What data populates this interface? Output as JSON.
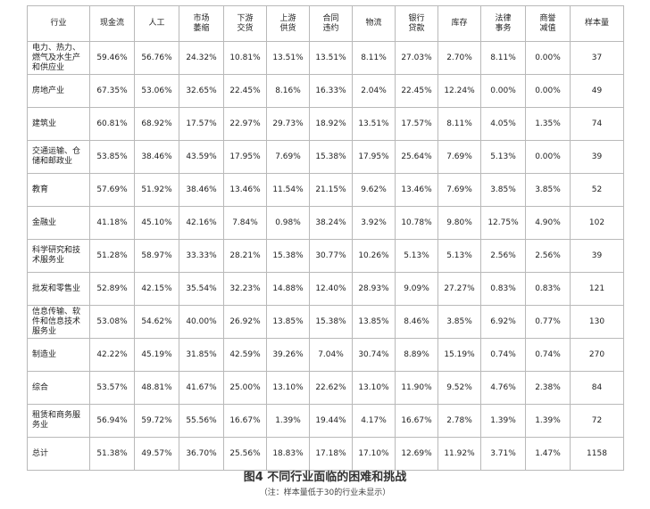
{
  "table": {
    "headers": [
      "行业",
      "现金流",
      "人工",
      "市场\n萎缩",
      "下游\n交货",
      "上游\n供货",
      "合同\n违约",
      "物流",
      "银行\n贷款",
      "库存",
      "法律\n事务",
      "商誉\n减值",
      "样本量"
    ],
    "rows": [
      [
        "电力、热力、燃气及水生产和供应业",
        "59.46%",
        "56.76%",
        "24.32%",
        "10.81%",
        "13.51%",
        "13.51%",
        "8.11%",
        "27.03%",
        "2.70%",
        "8.11%",
        "0.00%",
        "37"
      ],
      [
        "房地产业",
        "67.35%",
        "53.06%",
        "32.65%",
        "22.45%",
        "8.16%",
        "16.33%",
        "2.04%",
        "22.45%",
        "12.24%",
        "0.00%",
        "0.00%",
        "49"
      ],
      [
        "建筑业",
        "60.81%",
        "68.92%",
        "17.57%",
        "22.97%",
        "29.73%",
        "18.92%",
        "13.51%",
        "17.57%",
        "8.11%",
        "4.05%",
        "1.35%",
        "74"
      ],
      [
        "交通运输、仓储和邮政业",
        "53.85%",
        "38.46%",
        "43.59%",
        "17.95%",
        "7.69%",
        "15.38%",
        "17.95%",
        "25.64%",
        "7.69%",
        "5.13%",
        "0.00%",
        "39"
      ],
      [
        "教育",
        "57.69%",
        "51.92%",
        "38.46%",
        "13.46%",
        "11.54%",
        "21.15%",
        "9.62%",
        "13.46%",
        "7.69%",
        "3.85%",
        "3.85%",
        "52"
      ],
      [
        "金融业",
        "41.18%",
        "45.10%",
        "42.16%",
        "7.84%",
        "0.98%",
        "38.24%",
        "3.92%",
        "10.78%",
        "9.80%",
        "12.75%",
        "4.90%",
        "102"
      ],
      [
        "科学研究和技术服务业",
        "51.28%",
        "58.97%",
        "33.33%",
        "28.21%",
        "15.38%",
        "30.77%",
        "10.26%",
        "5.13%",
        "5.13%",
        "2.56%",
        "2.56%",
        "39"
      ],
      [
        "批发和零售业",
        "52.89%",
        "42.15%",
        "35.54%",
        "32.23%",
        "14.88%",
        "12.40%",
        "28.93%",
        "9.09%",
        "27.27%",
        "0.83%",
        "0.83%",
        "121"
      ],
      [
        "信息传输、软件和信息技术服务业",
        "53.08%",
        "54.62%",
        "40.00%",
        "26.92%",
        "13.85%",
        "15.38%",
        "13.85%",
        "8.46%",
        "3.85%",
        "6.92%",
        "0.77%",
        "130"
      ],
      [
        "制造业",
        "42.22%",
        "45.19%",
        "31.85%",
        "42.59%",
        "39.26%",
        "7.04%",
        "30.74%",
        "8.89%",
        "15.19%",
        "0.74%",
        "0.74%",
        "270"
      ],
      [
        "综合",
        "53.57%",
        "48.81%",
        "41.67%",
        "25.00%",
        "13.10%",
        "22.62%",
        "13.10%",
        "11.90%",
        "9.52%",
        "4.76%",
        "2.38%",
        "84"
      ],
      [
        "租赁和商务服务业",
        "56.94%",
        "59.72%",
        "55.56%",
        "16.67%",
        "1.39%",
        "19.44%",
        "4.17%",
        "16.67%",
        "2.78%",
        "1.39%",
        "1.39%",
        "72"
      ],
      [
        "总计",
        "51.38%",
        "49.57%",
        "36.70%",
        "25.56%",
        "18.83%",
        "17.18%",
        "17.10%",
        "12.69%",
        "11.92%",
        "3.71%",
        "1.47%",
        "1158"
      ]
    ]
  },
  "caption": {
    "title": "图4  不同行业面临的困难和挑战",
    "note": "（注：样本量低于30的行业未显示）"
  }
}
